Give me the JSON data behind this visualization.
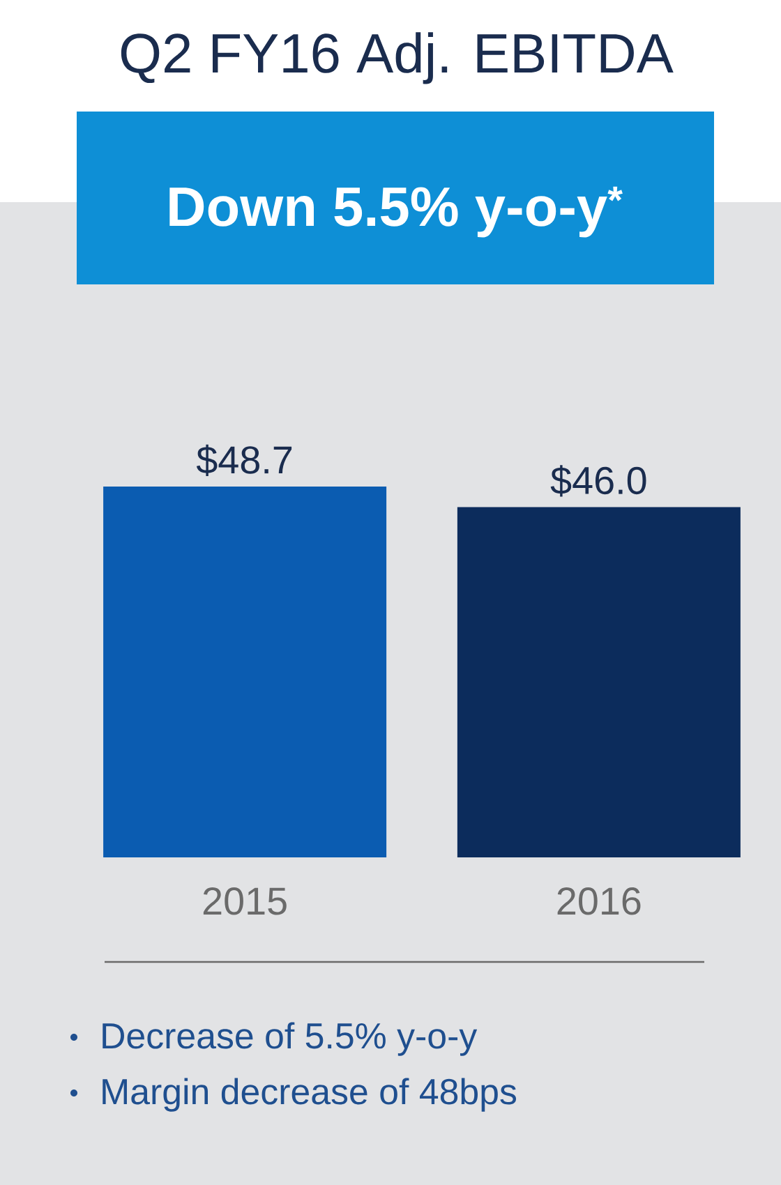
{
  "chart_data": {
    "type": "bar",
    "title": "Q2 FY16 Adj. EBITDA",
    "subtitle": "Down 5.5% y-o-y$^{*}$",
    "categories": [
      "2015",
      "2016"
    ],
    "values": [
      48.7,
      46.0
    ],
    "colors": [
      "#0b5cb1",
      "#0c2c5c"
    ],
    "value_labels": [
      "$48.7",
      "$46.0"
    ],
    "annotations": [
      "Decrease of 5.5% y-o-y",
      "Margin decrease of 48bps"
    ]
  }
}
